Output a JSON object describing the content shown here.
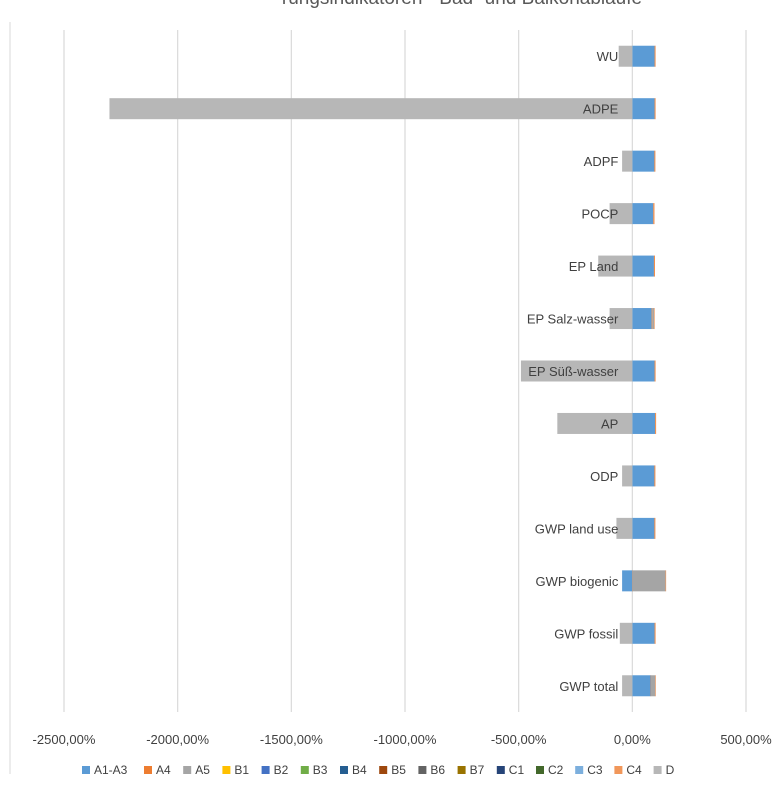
{
  "chart_data": {
    "type": "bar",
    "orientation": "horizontal",
    "stacked": true,
    "title": "rungsindikatoren - Bad- und Balkonabläufe",
    "xlabel": "",
    "ylabel": "",
    "xlim": [
      -2500,
      500
    ],
    "x_ticks": [
      -2500,
      -2000,
      -1500,
      -1000,
      -500,
      0,
      500
    ],
    "x_tick_labels": [
      "-2500,00%",
      "-2000,00%",
      "-1500,00%",
      "-1000,00%",
      "-500,00%",
      "0,00%",
      "500,00%"
    ],
    "grid": "vertical",
    "legend_position": "bottom",
    "categories": [
      "GWP total",
      "GWP fossil",
      "GWP biogenic",
      "GWP land use",
      "ODP",
      "AP",
      "EP Süß-wasser",
      "EP Salz-wasser",
      "EP Land",
      "POCP",
      "ADPF",
      "ADPE",
      "WU"
    ],
    "series": [
      {
        "name": "A1-A3",
        "color": "#5b9bd5",
        "values": [
          80,
          98,
          -45,
          97,
          97,
          100,
          98,
          85,
          95,
          92,
          97,
          98,
          98
        ]
      },
      {
        "name": "A4",
        "color": "#ed7d31",
        "values": [
          1,
          2,
          1,
          2,
          2,
          2,
          2,
          3,
          2,
          3,
          2,
          2,
          2
        ]
      },
      {
        "name": "A5",
        "color": "#a5a5a5",
        "values": [
          20,
          0,
          145,
          0,
          0,
          0,
          0,
          8,
          0,
          0,
          0,
          0,
          0
        ]
      },
      {
        "name": "B1",
        "color": "#ffc000",
        "values": [
          0,
          0,
          0,
          0,
          0,
          0,
          0,
          0,
          0,
          0,
          0,
          0,
          0
        ]
      },
      {
        "name": "B2",
        "color": "#4472c4",
        "values": [
          0,
          0,
          0,
          0,
          0,
          0,
          0,
          0,
          0,
          0,
          0,
          0,
          0
        ]
      },
      {
        "name": "B3",
        "color": "#70ad47",
        "values": [
          0,
          0,
          0,
          0,
          0,
          0,
          0,
          0,
          0,
          0,
          0,
          0,
          0
        ]
      },
      {
        "name": "B4",
        "color": "#255e91",
        "values": [
          0,
          0,
          0,
          0,
          0,
          0,
          0,
          0,
          0,
          0,
          0,
          0,
          0
        ]
      },
      {
        "name": "B5",
        "color": "#9e480e",
        "values": [
          0,
          0,
          0,
          0,
          0,
          0,
          0,
          0,
          0,
          0,
          0,
          0,
          0
        ]
      },
      {
        "name": "B6",
        "color": "#636363",
        "values": [
          0,
          0,
          0,
          0,
          0,
          0,
          0,
          0,
          0,
          0,
          0,
          0,
          0
        ]
      },
      {
        "name": "B7",
        "color": "#997300",
        "values": [
          0,
          0,
          0,
          0,
          0,
          0,
          0,
          0,
          0,
          0,
          0,
          0,
          0
        ]
      },
      {
        "name": "C1",
        "color": "#264478",
        "values": [
          0,
          0,
          0,
          0,
          0,
          0,
          0,
          0,
          0,
          0,
          0,
          0,
          0
        ]
      },
      {
        "name": "C2",
        "color": "#43682b",
        "values": [
          0,
          0,
          0,
          0,
          0,
          0,
          0,
          0,
          0,
          0,
          0,
          0,
          0
        ]
      },
      {
        "name": "C3",
        "color": "#7cafdd",
        "values": [
          0,
          0,
          0,
          0,
          0,
          0,
          0,
          0,
          0,
          0,
          0,
          0,
          0
        ]
      },
      {
        "name": "C4",
        "color": "#f1975a",
        "values": [
          1,
          1,
          2,
          1,
          1,
          1,
          1,
          2,
          1,
          1,
          1,
          1,
          1
        ]
      },
      {
        "name": "D",
        "color": "#b7b7b7",
        "values": [
          -45,
          -55,
          0,
          -70,
          -45,
          -330,
          -490,
          -100,
          -150,
          -100,
          -45,
          -2300,
          -60
        ]
      }
    ]
  }
}
